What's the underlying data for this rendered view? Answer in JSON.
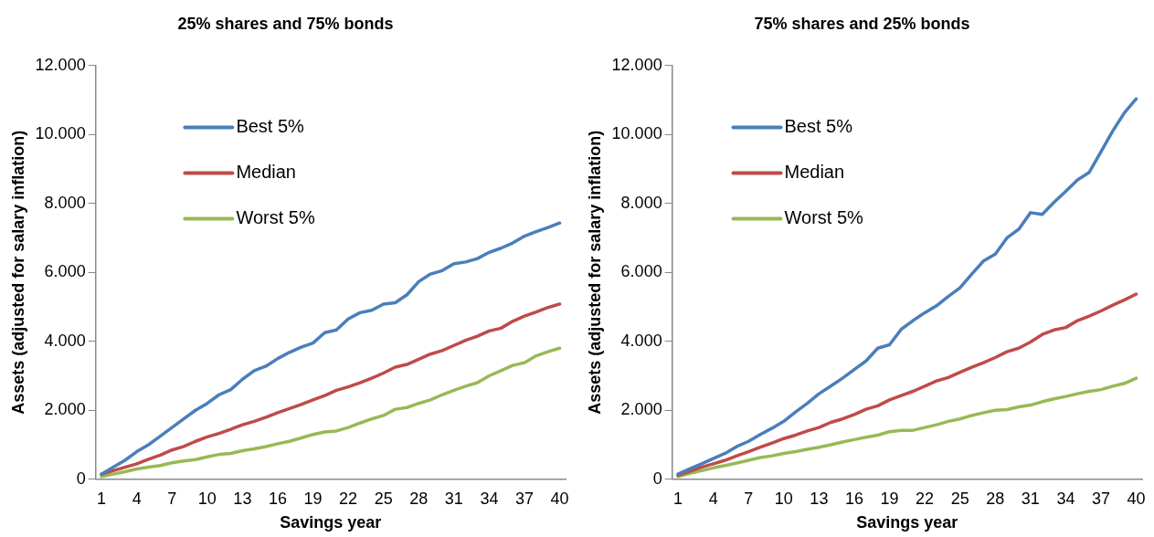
{
  "chart_data": [
    {
      "type": "line",
      "title": "25% shares and 75% bonds",
      "xlabel": "Savings year",
      "ylabel": "Assets (adjusted for salary inflation)",
      "categories": [
        "1",
        null,
        null,
        "4",
        null,
        null,
        "7",
        null,
        null,
        "10",
        null,
        null,
        "13",
        null,
        null,
        "16",
        null,
        null,
        "19",
        null,
        null,
        "22",
        null,
        null,
        "25",
        null,
        null,
        "28",
        null,
        null,
        "31",
        null,
        null,
        "34",
        null,
        null,
        "37",
        null,
        null,
        "40"
      ],
      "series": [
        {
          "name": "Best 5%",
          "color": "#4a7ebb",
          "values": [
            150,
            350,
            550,
            800,
            1000,
            1250,
            1500,
            1750,
            2000,
            2200,
            2450,
            2600,
            2900,
            3150,
            3280,
            3500,
            3680,
            3830,
            3950,
            4250,
            4330,
            4650,
            4830,
            4900,
            5080,
            5120,
            5350,
            5730,
            5950,
            6050,
            6250,
            6300,
            6400,
            6580,
            6700,
            6850,
            7050,
            7180,
            7300,
            7430
          ]
        },
        {
          "name": "Median",
          "color": "#be4b48",
          "values": [
            150,
            250,
            350,
            450,
            580,
            700,
            850,
            950,
            1100,
            1230,
            1330,
            1450,
            1580,
            1680,
            1800,
            1930,
            2050,
            2170,
            2300,
            2430,
            2580,
            2680,
            2800,
            2930,
            3080,
            3250,
            3330,
            3480,
            3630,
            3730,
            3880,
            4030,
            4150,
            4300,
            4380,
            4580,
            4730,
            4850,
            4980,
            5080
          ]
        },
        {
          "name": "Worst 5%",
          "color": "#98b954",
          "values": [
            80,
            150,
            220,
            300,
            350,
            400,
            480,
            530,
            570,
            650,
            720,
            750,
            830,
            880,
            950,
            1030,
            1100,
            1200,
            1300,
            1370,
            1400,
            1500,
            1630,
            1750,
            1850,
            2030,
            2080,
            2200,
            2300,
            2450,
            2580,
            2700,
            2800,
            3000,
            3150,
            3300,
            3380,
            3580,
            3700,
            3800
          ]
        }
      ],
      "ylim": [
        0,
        12000
      ],
      "yticks": [
        0,
        {
          "value": 2000,
          "label": "2.000"
        },
        {
          "value": 4000,
          "label": "4.000"
        },
        {
          "value": 6000,
          "label": "6.000"
        },
        {
          "value": 8000,
          "label": "8.000"
        },
        {
          "value": 10000,
          "label": "10.000"
        },
        {
          "value": 12000,
          "label": "12.000"
        }
      ],
      "grid": false,
      "legend": "top left",
      "marker": "none",
      "line_style": "solid"
    },
    {
      "type": "line",
      "title": "75% shares and 25% bonds",
      "xlabel": "Savings year",
      "ylabel": "Assets (adjusted for salary inflation)",
      "categories": [
        "1",
        null,
        null,
        "4",
        null,
        null,
        "7",
        null,
        null,
        "10",
        null,
        null,
        "13",
        null,
        null,
        "16",
        null,
        null,
        "19",
        null,
        null,
        "22",
        null,
        null,
        "25",
        null,
        null,
        "28",
        null,
        null,
        "31",
        null,
        null,
        "34",
        null,
        null,
        "37",
        null,
        null,
        "40"
      ],
      "series": [
        {
          "name": "Best 5%",
          "color": "#4a7ebb",
          "values": [
            150,
            300,
            450,
            600,
            750,
            950,
            1100,
            1300,
            1480,
            1680,
            1950,
            2200,
            2480,
            2700,
            2930,
            3180,
            3430,
            3800,
            3900,
            4350,
            4600,
            4830,
            5030,
            5300,
            5550,
            5950,
            6330,
            6530,
            7000,
            7250,
            7730,
            7680,
            8030,
            8350,
            8680,
            8900,
            9500,
            10100,
            10630,
            11030
          ]
        },
        {
          "name": "Median",
          "color": "#be4b48",
          "values": [
            120,
            230,
            350,
            450,
            550,
            680,
            800,
            930,
            1050,
            1180,
            1280,
            1400,
            1500,
            1650,
            1750,
            1880,
            2030,
            2130,
            2300,
            2430,
            2550,
            2700,
            2850,
            2950,
            3100,
            3250,
            3380,
            3530,
            3700,
            3800,
            3980,
            4200,
            4330,
            4400,
            4600,
            4730,
            4880,
            5050,
            5200,
            5370
          ]
        },
        {
          "name": "Worst 5%",
          "color": "#98b954",
          "values": [
            80,
            170,
            250,
            330,
            400,
            470,
            550,
            630,
            680,
            750,
            800,
            870,
            930,
            1000,
            1080,
            1150,
            1220,
            1280,
            1380,
            1420,
            1420,
            1500,
            1580,
            1680,
            1750,
            1850,
            1930,
            2000,
            2020,
            2100,
            2150,
            2250,
            2330,
            2400,
            2480,
            2550,
            2600,
            2700,
            2780,
            2930
          ]
        }
      ],
      "ylim": [
        0,
        12000
      ],
      "yticks": [
        0,
        {
          "value": 2000,
          "label": "2.000"
        },
        {
          "value": 4000,
          "label": "4.000"
        },
        {
          "value": 6000,
          "label": "6.000"
        },
        {
          "value": 8000,
          "label": "8.000"
        },
        {
          "value": 10000,
          "label": "10.000"
        },
        {
          "value": 12000,
          "label": "12.000"
        }
      ],
      "grid": false,
      "legend": "top left",
      "marker": "none",
      "line_style": "solid"
    }
  ]
}
